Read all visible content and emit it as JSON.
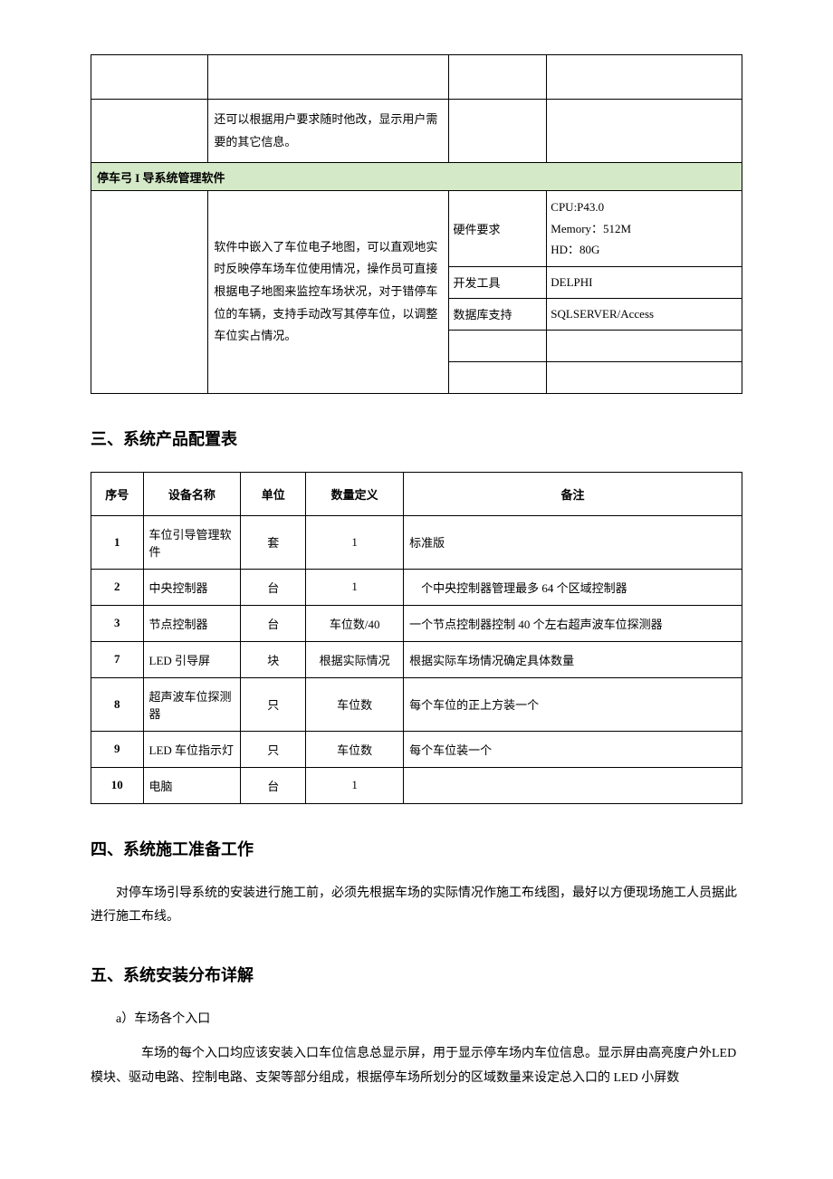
{
  "table1": {
    "row1_desc": "还可以根据用户要求随时他改，显示用户需要的其它信息。",
    "section_header": "停车弓 I 导系统管理软件",
    "main_desc": "软件中嵌入了车位电子地图，可以直观地实时反映停车场车位使用情况，操作员可直接根据电子地图来监控车场状况，对于错停车位的车辆，支持手动改写其停车位，以调整车位实占情况。",
    "spec_rows": [
      {
        "label": "硬件要求",
        "value": "CPU:P43.0\nMemory：512M\nHD：80G"
      },
      {
        "label": "开发工具",
        "value": "DELPHI"
      },
      {
        "label": "数据库支持",
        "value": "SQLSERVER/Access"
      },
      {
        "label": "",
        "value": ""
      },
      {
        "label": "",
        "value": ""
      }
    ]
  },
  "section3_title": "三、系统产品配置表",
  "table2": {
    "headers": [
      "序号",
      "设备名称",
      "单位",
      "数量定义",
      "备注"
    ],
    "rows": [
      {
        "num": "1",
        "name": "车位引导管理软件",
        "unit": "套",
        "qty": "1",
        "remark": "标准版"
      },
      {
        "num": "2",
        "name": "中央控制器",
        "unit": "台",
        "qty": "1",
        "remark": "　个中央控制器管理最多 64 个区域控制器"
      },
      {
        "num": "3",
        "name": "节点控制器",
        "unit": "台",
        "qty": "车位数/40",
        "remark": "一个节点控制器控制 40 个左右超声波车位探测器"
      },
      {
        "num": "7",
        "name": "LED 引导屏",
        "unit": "块",
        "qty": "根据实际情况",
        "remark": "根据实际车场情况确定具体数量"
      },
      {
        "num": "8",
        "name": "超声波车位探测器",
        "unit": "只",
        "qty": "车位数",
        "remark": "每个车位的正上方装一个"
      },
      {
        "num": "9",
        "name": "LED 车位指示灯",
        "unit": "只",
        "qty": "车位数",
        "remark": "每个车位装一个"
      },
      {
        "num": "10",
        "name": "电脑",
        "unit": "台",
        "qty": "1",
        "remark": ""
      }
    ]
  },
  "section4_title": "四、系统施工准备工作",
  "section4_body": "对停车场引导系统的安装进行施工前，必须先根据车场的实际情况作施工布线图，最好以方便现场施工人员据此进行施工布线。",
  "section5_title": "五、系统安装分布详解",
  "section5_item_a_label": "a）车场各个入口",
  "section5_item_a_body": "车场的每个入口均应该安装入口车位信息总显示屏，用于显示停车场内车位信息。显示屏由高亮度户外LED 模块、驱动电路、控制电路、支架等部分组成，根据停车场所划分的区域数量来设定总入口的 LED 小屏数"
}
